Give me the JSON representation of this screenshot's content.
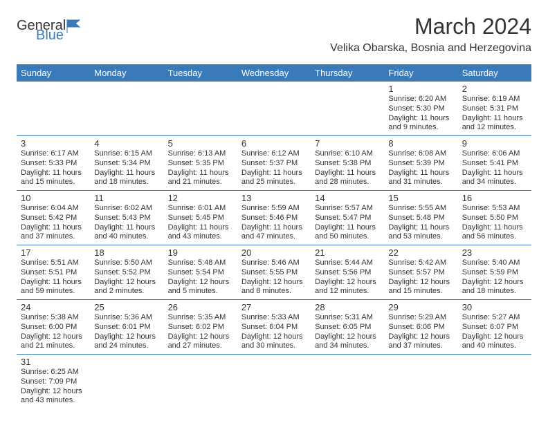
{
  "colors": {
    "header_bg": "#3a7ab8",
    "header_text": "#ffffff",
    "border": "#3a7ab8",
    "text": "#333333",
    "logo_blue": "#3a7ab8",
    "background": "#ffffff"
  },
  "logo": {
    "line1": "General",
    "line2": "Blue"
  },
  "title": "March 2024",
  "location": "Velika Obarska, Bosnia and Herzegovina",
  "day_headers": [
    "Sunday",
    "Monday",
    "Tuesday",
    "Wednesday",
    "Thursday",
    "Friday",
    "Saturday"
  ],
  "weeks": [
    [
      null,
      null,
      null,
      null,
      null,
      {
        "num": "1",
        "sunrise": "Sunrise: 6:20 AM",
        "sunset": "Sunset: 5:30 PM",
        "daylight": "Daylight: 11 hours and 9 minutes."
      },
      {
        "num": "2",
        "sunrise": "Sunrise: 6:19 AM",
        "sunset": "Sunset: 5:31 PM",
        "daylight": "Daylight: 11 hours and 12 minutes."
      }
    ],
    [
      {
        "num": "3",
        "sunrise": "Sunrise: 6:17 AM",
        "sunset": "Sunset: 5:33 PM",
        "daylight": "Daylight: 11 hours and 15 minutes."
      },
      {
        "num": "4",
        "sunrise": "Sunrise: 6:15 AM",
        "sunset": "Sunset: 5:34 PM",
        "daylight": "Daylight: 11 hours and 18 minutes."
      },
      {
        "num": "5",
        "sunrise": "Sunrise: 6:13 AM",
        "sunset": "Sunset: 5:35 PM",
        "daylight": "Daylight: 11 hours and 21 minutes."
      },
      {
        "num": "6",
        "sunrise": "Sunrise: 6:12 AM",
        "sunset": "Sunset: 5:37 PM",
        "daylight": "Daylight: 11 hours and 25 minutes."
      },
      {
        "num": "7",
        "sunrise": "Sunrise: 6:10 AM",
        "sunset": "Sunset: 5:38 PM",
        "daylight": "Daylight: 11 hours and 28 minutes."
      },
      {
        "num": "8",
        "sunrise": "Sunrise: 6:08 AM",
        "sunset": "Sunset: 5:39 PM",
        "daylight": "Daylight: 11 hours and 31 minutes."
      },
      {
        "num": "9",
        "sunrise": "Sunrise: 6:06 AM",
        "sunset": "Sunset: 5:41 PM",
        "daylight": "Daylight: 11 hours and 34 minutes."
      }
    ],
    [
      {
        "num": "10",
        "sunrise": "Sunrise: 6:04 AM",
        "sunset": "Sunset: 5:42 PM",
        "daylight": "Daylight: 11 hours and 37 minutes."
      },
      {
        "num": "11",
        "sunrise": "Sunrise: 6:02 AM",
        "sunset": "Sunset: 5:43 PM",
        "daylight": "Daylight: 11 hours and 40 minutes."
      },
      {
        "num": "12",
        "sunrise": "Sunrise: 6:01 AM",
        "sunset": "Sunset: 5:45 PM",
        "daylight": "Daylight: 11 hours and 43 minutes."
      },
      {
        "num": "13",
        "sunrise": "Sunrise: 5:59 AM",
        "sunset": "Sunset: 5:46 PM",
        "daylight": "Daylight: 11 hours and 47 minutes."
      },
      {
        "num": "14",
        "sunrise": "Sunrise: 5:57 AM",
        "sunset": "Sunset: 5:47 PM",
        "daylight": "Daylight: 11 hours and 50 minutes."
      },
      {
        "num": "15",
        "sunrise": "Sunrise: 5:55 AM",
        "sunset": "Sunset: 5:48 PM",
        "daylight": "Daylight: 11 hours and 53 minutes."
      },
      {
        "num": "16",
        "sunrise": "Sunrise: 5:53 AM",
        "sunset": "Sunset: 5:50 PM",
        "daylight": "Daylight: 11 hours and 56 minutes."
      }
    ],
    [
      {
        "num": "17",
        "sunrise": "Sunrise: 5:51 AM",
        "sunset": "Sunset: 5:51 PM",
        "daylight": "Daylight: 11 hours and 59 minutes."
      },
      {
        "num": "18",
        "sunrise": "Sunrise: 5:50 AM",
        "sunset": "Sunset: 5:52 PM",
        "daylight": "Daylight: 12 hours and 2 minutes."
      },
      {
        "num": "19",
        "sunrise": "Sunrise: 5:48 AM",
        "sunset": "Sunset: 5:54 PM",
        "daylight": "Daylight: 12 hours and 5 minutes."
      },
      {
        "num": "20",
        "sunrise": "Sunrise: 5:46 AM",
        "sunset": "Sunset: 5:55 PM",
        "daylight": "Daylight: 12 hours and 8 minutes."
      },
      {
        "num": "21",
        "sunrise": "Sunrise: 5:44 AM",
        "sunset": "Sunset: 5:56 PM",
        "daylight": "Daylight: 12 hours and 12 minutes."
      },
      {
        "num": "22",
        "sunrise": "Sunrise: 5:42 AM",
        "sunset": "Sunset: 5:57 PM",
        "daylight": "Daylight: 12 hours and 15 minutes."
      },
      {
        "num": "23",
        "sunrise": "Sunrise: 5:40 AM",
        "sunset": "Sunset: 5:59 PM",
        "daylight": "Daylight: 12 hours and 18 minutes."
      }
    ],
    [
      {
        "num": "24",
        "sunrise": "Sunrise: 5:38 AM",
        "sunset": "Sunset: 6:00 PM",
        "daylight": "Daylight: 12 hours and 21 minutes."
      },
      {
        "num": "25",
        "sunrise": "Sunrise: 5:36 AM",
        "sunset": "Sunset: 6:01 PM",
        "daylight": "Daylight: 12 hours and 24 minutes."
      },
      {
        "num": "26",
        "sunrise": "Sunrise: 5:35 AM",
        "sunset": "Sunset: 6:02 PM",
        "daylight": "Daylight: 12 hours and 27 minutes."
      },
      {
        "num": "27",
        "sunrise": "Sunrise: 5:33 AM",
        "sunset": "Sunset: 6:04 PM",
        "daylight": "Daylight: 12 hours and 30 minutes."
      },
      {
        "num": "28",
        "sunrise": "Sunrise: 5:31 AM",
        "sunset": "Sunset: 6:05 PM",
        "daylight": "Daylight: 12 hours and 34 minutes."
      },
      {
        "num": "29",
        "sunrise": "Sunrise: 5:29 AM",
        "sunset": "Sunset: 6:06 PM",
        "daylight": "Daylight: 12 hours and 37 minutes."
      },
      {
        "num": "30",
        "sunrise": "Sunrise: 5:27 AM",
        "sunset": "Sunset: 6:07 PM",
        "daylight": "Daylight: 12 hours and 40 minutes."
      }
    ],
    [
      {
        "num": "31",
        "sunrise": "Sunrise: 6:25 AM",
        "sunset": "Sunset: 7:09 PM",
        "daylight": "Daylight: 12 hours and 43 minutes."
      },
      null,
      null,
      null,
      null,
      null,
      null
    ]
  ]
}
